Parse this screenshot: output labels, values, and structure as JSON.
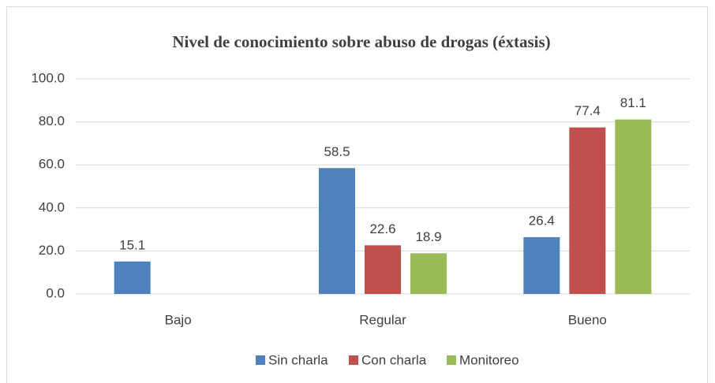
{
  "chart_data": {
    "type": "bar",
    "title": "Nivel de conocimiento sobre abuso de drogas (éxtasis)",
    "categories": [
      "Bajo",
      "Regular",
      "Bueno"
    ],
    "series": [
      {
        "name": "Sin charla",
        "color": "#4f81bd",
        "values": [
          15.1,
          58.5,
          26.4
        ]
      },
      {
        "name": "Con charla",
        "color": "#c0504d",
        "values": [
          null,
          22.6,
          77.4
        ]
      },
      {
        "name": "Monitoreo",
        "color": "#9bbb59",
        "values": [
          null,
          18.9,
          81.1
        ]
      }
    ],
    "ylim": [
      0,
      100
    ],
    "yticks": [
      {
        "value": 0,
        "label": "0.0"
      },
      {
        "value": 20,
        "label": "20.0"
      },
      {
        "value": 40,
        "label": "40.0"
      },
      {
        "value": 60,
        "label": "60.0"
      },
      {
        "value": 80,
        "label": "80.0"
      },
      {
        "value": 100,
        "label": "100.0"
      }
    ],
    "grid": true,
    "legend": "bottom"
  }
}
